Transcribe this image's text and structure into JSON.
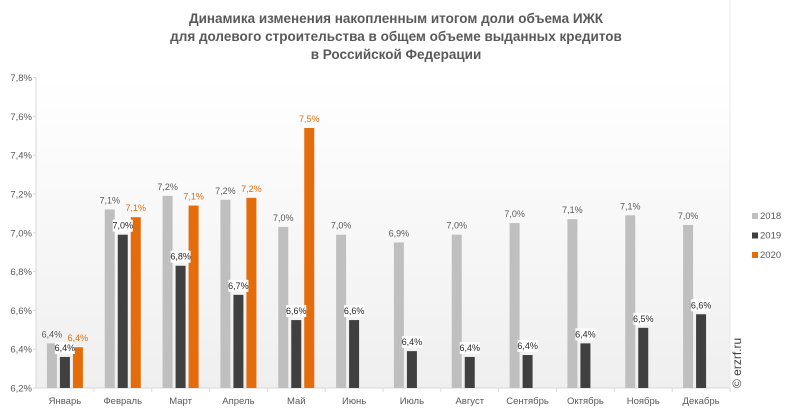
{
  "chart_data": {
    "type": "bar",
    "title": [
      "Динамика изменения накопленным итогом доли объема ИЖК",
      "для долевого строительства  в общем объеме выданных кредитов",
      "в Российской  Федерации"
    ],
    "xlabel": "",
    "ylabel": "",
    "ylim": [
      6.2,
      7.8
    ],
    "yticks": [
      "6,2%",
      "6,4%",
      "6,6%",
      "6,8%",
      "7,0%",
      "7,2%",
      "7,4%",
      "7,6%",
      "7,8%"
    ],
    "categories": [
      "Январь",
      "Февраль",
      "Март",
      "Апрель",
      "Май",
      "Июнь",
      "Июль",
      "Август",
      "Сентябрь",
      "Октябрь",
      "Ноябрь",
      "Декабрь"
    ],
    "series": [
      {
        "name": "2018",
        "color": "#bfbfbf",
        "label_color": "#595959",
        "values": [
          6.43,
          7.12,
          7.19,
          7.17,
          7.03,
          6.99,
          6.95,
          6.99,
          7.05,
          7.07,
          7.09,
          7.04
        ],
        "labels": [
          "6,4%",
          "7,1%",
          "7,2%",
          "7,2%",
          "7,0%",
          "7,0%",
          "6,9%",
          "7,0%",
          "7,0%",
          "7,1%",
          "7,1%",
          "7,0%"
        ]
      },
      {
        "name": "2019",
        "color": "#404040",
        "label_color": "#262626",
        "values": [
          6.36,
          6.99,
          6.83,
          6.68,
          6.55,
          6.55,
          6.39,
          6.36,
          6.37,
          6.43,
          6.51,
          6.58
        ],
        "labels": [
          "6,4%",
          "7,0%",
          "6,8%",
          "6,7%",
          "6,6%",
          "6,6%",
          "6,4%",
          "6,4%",
          "6,4%",
          "6,4%",
          "6,5%",
          "6,6%"
        ]
      },
      {
        "name": "2020",
        "color": "#e46c0a",
        "label_color": "#e46c0a",
        "values": [
          6.41,
          7.08,
          7.14,
          7.18,
          7.54,
          null,
          null,
          null,
          null,
          null,
          null,
          null
        ],
        "labels": [
          "6,4%",
          "7,1%",
          "7,1%",
          "7,2%",
          "7,5%",
          null,
          null,
          null,
          null,
          null,
          null,
          null
        ]
      }
    ],
    "grid": false,
    "legend": "right"
  },
  "watermark": "© erzrf.ru"
}
